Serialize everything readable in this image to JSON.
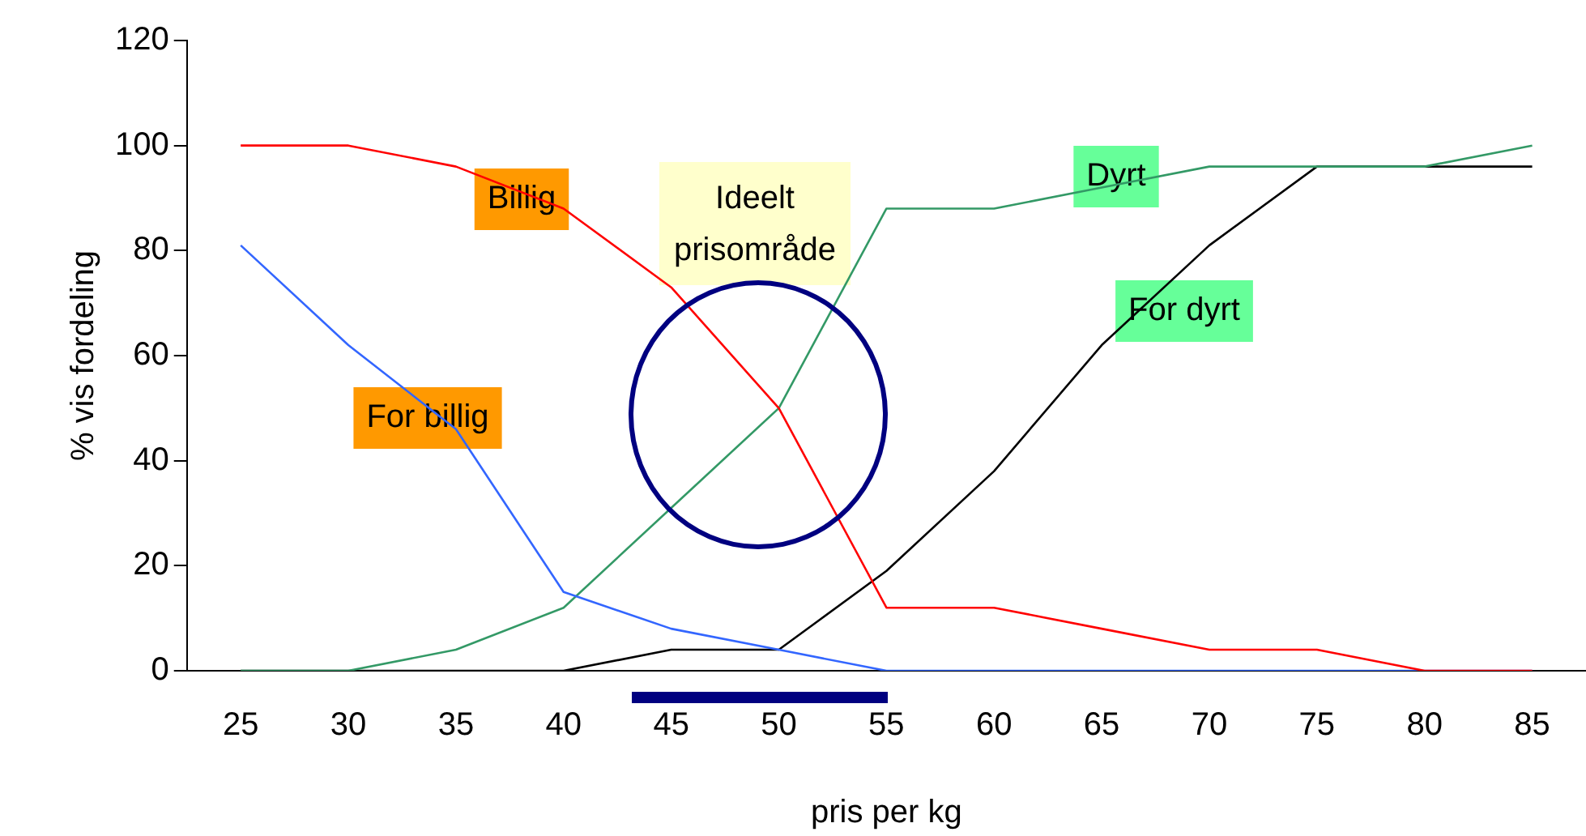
{
  "chart_data": {
    "type": "line",
    "xlabel": "pris per kg",
    "ylabel": "% vis fordeling",
    "categories": [
      "25",
      "30",
      "35",
      "40",
      "45",
      "50",
      "55",
      "60",
      "65",
      "70",
      "75",
      "80",
      "85"
    ],
    "ylim": [
      0,
      120
    ],
    "yticks": [
      0,
      20,
      40,
      60,
      80,
      100,
      120
    ],
    "grid": false,
    "legend": false,
    "marker": "none",
    "line_style": "solid",
    "annotations": [
      "Ideelt prisområde"
    ],
    "series": [
      {
        "name": "Billig",
        "color": "#ff0000",
        "values": [
          100,
          100,
          96,
          88,
          73,
          50,
          12,
          12,
          8,
          4,
          4,
          0,
          0
        ]
      },
      {
        "name": "For billig",
        "color": "#3366ff",
        "values": [
          81,
          62,
          46,
          15,
          8,
          4,
          0,
          0,
          0,
          0,
          0,
          0,
          0
        ]
      },
      {
        "name": "Dyrt",
        "color": "#339966",
        "values": [
          0,
          0,
          4,
          12,
          31,
          50,
          88,
          88,
          92,
          96,
          96,
          96,
          100
        ]
      },
      {
        "name": "For dyrt",
        "color": "#000000",
        "values": [
          0,
          0,
          0,
          0,
          4,
          4,
          19,
          38,
          62,
          81,
          96,
          96,
          96
        ]
      }
    ]
  }
}
